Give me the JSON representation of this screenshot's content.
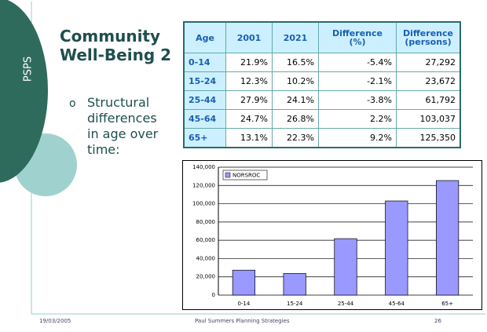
{
  "side_label": "PSPS",
  "title": "Community Well-Being 2",
  "bullet": "Structural differences in age over time:",
  "table": {
    "header": [
      "Age",
      "2001",
      "2021",
      "Difference (%)",
      "Difference (persons)"
    ],
    "rows": [
      [
        "0-14",
        "21.9%",
        "16.5%",
        "-5.4%",
        "27,292"
      ],
      [
        "15-24",
        "12.3%",
        "10.2%",
        "-2.1%",
        "23,672"
      ],
      [
        "25-44",
        "27.9%",
        "24.1%",
        "-3.8%",
        "61,792"
      ],
      [
        "45-64",
        "24.7%",
        "26.8%",
        "2.2%",
        "103,037"
      ],
      [
        "65+",
        "13.1%",
        "22.3%",
        "9.2%",
        "125,350"
      ]
    ]
  },
  "chart_data": {
    "type": "bar",
    "categories": [
      "0-14",
      "15-24",
      "25-44",
      "45-64",
      "65+"
    ],
    "series": [
      {
        "name": "NORSROC",
        "color": "#9999ff",
        "values": [
          27292,
          23672,
          61792,
          103037,
          125350
        ]
      }
    ],
    "ylim": [
      0,
      140000
    ],
    "yticks": [
      0,
      {
        "value": 20000,
        "label": "20,000"
      },
      {
        "value": 40000,
        "label": "40,000"
      },
      {
        "value": 60000,
        "label": "60,000"
      },
      {
        "value": 80000,
        "label": "80,000"
      },
      {
        "value": 100000,
        "label": "100,000"
      },
      {
        "value": 120000,
        "label": "120,000"
      },
      {
        "value": 140000,
        "label": "140,000"
      }
    ],
    "grid": true,
    "legend": "top-left"
  },
  "footer": {
    "date": "19/03/2005",
    "center": "Paul Summers Planning Strategies",
    "page": "26"
  }
}
